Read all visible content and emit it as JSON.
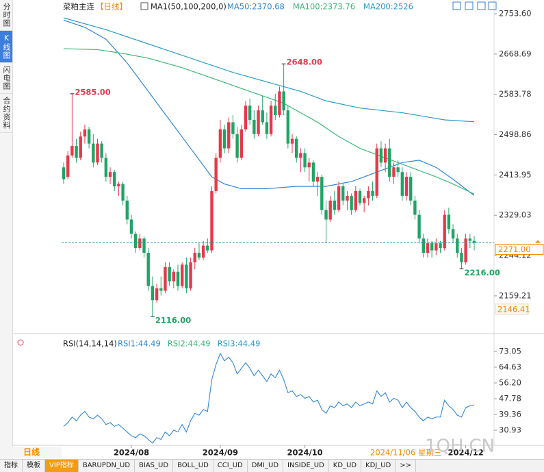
{
  "sidebar": [
    "分时图",
    "K线图",
    "闪电图",
    "合约资料"
  ],
  "chart_data": {
    "type": "candlestick",
    "title": "菜粕主连",
    "period": "【日线】",
    "indicator": "MA1(50,100,200,0)",
    "up_color": "#e5394b",
    "down_color": "#21a366",
    "candles": [
      [
        2430,
        2440,
        2395,
        2405
      ],
      [
        2410,
        2465,
        2405,
        2455
      ],
      [
        2455,
        2585,
        2450,
        2475
      ],
      [
        2475,
        2490,
        2440,
        2450
      ],
      [
        2450,
        2505,
        2445,
        2495
      ],
      [
        2495,
        2520,
        2480,
        2510
      ],
      [
        2510,
        2515,
        2470,
        2480
      ],
      [
        2480,
        2500,
        2430,
        2440
      ],
      [
        2440,
        2490,
        2435,
        2480
      ],
      [
        2480,
        2485,
        2440,
        2450
      ],
      [
        2450,
        2460,
        2400,
        2410
      ],
      [
        2410,
        2430,
        2395,
        2420
      ],
      [
        2420,
        2425,
        2380,
        2390
      ],
      [
        2390,
        2400,
        2370,
        2395
      ],
      [
        2395,
        2400,
        2350,
        2360
      ],
      [
        2360,
        2370,
        2310,
        2320
      ],
      [
        2320,
        2330,
        2280,
        2290
      ],
      [
        2290,
        2295,
        2250,
        2260
      ],
      [
        2260,
        2290,
        2255,
        2280
      ],
      [
        2280,
        2285,
        2240,
        2250
      ],
      [
        2250,
        2260,
        2170,
        2180
      ],
      [
        2180,
        2200,
        2116,
        2150
      ],
      [
        2150,
        2185,
        2145,
        2175
      ],
      [
        2175,
        2200,
        2160,
        2170
      ],
      [
        2170,
        2230,
        2165,
        2220
      ],
      [
        2220,
        2230,
        2180,
        2190
      ],
      [
        2190,
        2215,
        2175,
        2210
      ],
      [
        2210,
        2225,
        2170,
        2180
      ],
      [
        2180,
        2230,
        2175,
        2225
      ],
      [
        2225,
        2240,
        2165,
        2175
      ],
      [
        2175,
        2240,
        2170,
        2230
      ],
      [
        2230,
        2260,
        2215,
        2250
      ],
      [
        2250,
        2270,
        2235,
        2240
      ],
      [
        2240,
        2275,
        2235,
        2265
      ],
      [
        2265,
        2280,
        2250,
        2255
      ],
      [
        2255,
        2390,
        2250,
        2380
      ],
      [
        2380,
        2460,
        2375,
        2450
      ],
      [
        2450,
        2530,
        2440,
        2510
      ],
      [
        2510,
        2520,
        2460,
        2470
      ],
      [
        2470,
        2535,
        2460,
        2525
      ],
      [
        2525,
        2540,
        2490,
        2500
      ],
      [
        2500,
        2515,
        2440,
        2450
      ],
      [
        2450,
        2520,
        2445,
        2510
      ],
      [
        2510,
        2570,
        2505,
        2560
      ],
      [
        2560,
        2575,
        2520,
        2530
      ],
      [
        2530,
        2550,
        2490,
        2500
      ],
      [
        2500,
        2560,
        2495,
        2550
      ],
      [
        2550,
        2580,
        2520,
        2525
      ],
      [
        2525,
        2545,
        2490,
        2500
      ],
      [
        2500,
        2570,
        2495,
        2560
      ],
      [
        2560,
        2585,
        2530,
        2540
      ],
      [
        2540,
        2600,
        2535,
        2590
      ],
      [
        2590,
        2648,
        2540,
        2550
      ],
      [
        2550,
        2560,
        2470,
        2480
      ],
      [
        2480,
        2500,
        2460,
        2490
      ],
      [
        2490,
        2495,
        2440,
        2450
      ],
      [
        2450,
        2470,
        2420,
        2460
      ],
      [
        2460,
        2470,
        2420,
        2430
      ],
      [
        2430,
        2450,
        2400,
        2440
      ],
      [
        2440,
        2445,
        2390,
        2400
      ],
      [
        2400,
        2420,
        2370,
        2410
      ],
      [
        2410,
        2415,
        2330,
        2340
      ],
      [
        2340,
        2360,
        2270,
        2320
      ],
      [
        2320,
        2370,
        2315,
        2360
      ],
      [
        2360,
        2380,
        2330,
        2340
      ],
      [
        2340,
        2400,
        2335,
        2390
      ],
      [
        2390,
        2395,
        2350,
        2360
      ],
      [
        2360,
        2380,
        2340,
        2370
      ],
      [
        2370,
        2375,
        2330,
        2340
      ],
      [
        2340,
        2390,
        2335,
        2380
      ],
      [
        2380,
        2385,
        2350,
        2355
      ],
      [
        2355,
        2370,
        2335,
        2365
      ],
      [
        2365,
        2390,
        2350,
        2380
      ],
      [
        2380,
        2400,
        2360,
        2370
      ],
      [
        2370,
        2480,
        2365,
        2470
      ],
      [
        2470,
        2485,
        2430,
        2440
      ],
      [
        2440,
        2480,
        2420,
        2470
      ],
      [
        2470,
        2490,
        2400,
        2410
      ],
      [
        2410,
        2440,
        2395,
        2430
      ],
      [
        2430,
        2445,
        2410,
        2420
      ],
      [
        2420,
        2430,
        2360,
        2370
      ],
      [
        2370,
        2420,
        2360,
        2410
      ],
      [
        2410,
        2420,
        2350,
        2360
      ],
      [
        2360,
        2370,
        2320,
        2330
      ],
      [
        2330,
        2340,
        2270,
        2280
      ],
      [
        2280,
        2290,
        2240,
        2250
      ],
      [
        2250,
        2280,
        2240,
        2270
      ],
      [
        2270,
        2275,
        2240,
        2255
      ],
      [
        2255,
        2280,
        2245,
        2270
      ],
      [
        2270,
        2275,
        2250,
        2260
      ],
      [
        2260,
        2340,
        2255,
        2330
      ],
      [
        2330,
        2345,
        2290,
        2300
      ],
      [
        2300,
        2310,
        2270,
        2280
      ],
      [
        2280,
        2290,
        2240,
        2250
      ],
      [
        2250,
        2260,
        2216,
        2230
      ],
      [
        2230,
        2290,
        2225,
        2280
      ],
      [
        2280,
        2290,
        2260,
        2275
      ],
      [
        2275,
        2285,
        2255,
        2271
      ]
    ],
    "xticks": [
      {
        "value": 16,
        "label": "2024/08"
      },
      {
        "value": 37,
        "label": "2024/09"
      },
      {
        "value": 57,
        "label": "2024/10"
      },
      {
        "value": 95,
        "label": "2024/12"
      }
    ],
    "ylim": [
      2097,
      2771
    ],
    "yticks": [
      {
        "value": 2753.6,
        "label": "2753.60"
      },
      2668.69,
      2583.78,
      2498.86,
      2413.95,
      2329.03,
      2244.12,
      2159.21
    ],
    "ma": [
      {
        "name": "MA50:2370.68",
        "color": "#2f86d8",
        "x": [
          0,
          5,
          10,
          15,
          20,
          25,
          30,
          35,
          38,
          42,
          48,
          55,
          62,
          68,
          74,
          80,
          84,
          88,
          92,
          97
        ],
        "values": [
          2740,
          2725,
          2700,
          2650,
          2590,
          2530,
          2470,
          2410,
          2395,
          2385,
          2385,
          2390,
          2390,
          2400,
          2420,
          2440,
          2445,
          2430,
          2405,
          2370.68
        ]
      },
      {
        "name": "MA100:2373.76",
        "color": "#3cb878",
        "x": [
          0,
          8,
          14,
          20,
          28,
          36,
          44,
          52,
          56,
          60,
          65,
          70,
          76,
          82,
          88,
          92,
          97
        ],
        "values": [
          2680,
          2678,
          2670,
          2660,
          2640,
          2615,
          2590,
          2565,
          2545,
          2525,
          2495,
          2470,
          2450,
          2430,
          2410,
          2395,
          2373.76
        ]
      },
      {
        "name": "MA200:2526",
        "color": "#2a9bc9",
        "x": [
          0,
          10,
          20,
          30,
          40,
          50,
          56,
          62,
          70,
          80,
          90,
          97
        ],
        "values": [
          2745,
          2720,
          2690,
          2660,
          2630,
          2605,
          2590,
          2570,
          2555,
          2545,
          2530,
          2526
        ]
      }
    ],
    "annotations": [
      {
        "value": 2585,
        "label": "2585.00",
        "color": "#e5394b"
      },
      {
        "value": 2648,
        "label": "2648.00",
        "color": "#e5394b"
      },
      {
        "value": 2116,
        "label": "2116.00",
        "color": "#21a366"
      },
      {
        "value": 2216,
        "label": "2216.00",
        "color": "#21a366"
      }
    ],
    "last_price": {
      "value": 2271,
      "label": "2271.00"
    },
    "level": 2146.41,
    "cursor_date": "2024/11/06 星期三",
    "rsi": {
      "title": "RSI(14,14,14)",
      "legend": [
        "RSI1:44.49",
        "RSI2:44.49",
        "RSI3:44.49"
      ],
      "color": "#2f86d8",
      "ylim": [
        22.9,
        78.9
      ],
      "yticks": [
        73.05,
        64.63,
        {
          "value": 56.2,
          "label": "56.20"
        },
        47.78,
        39.36,
        30.93
      ],
      "values": [
        33,
        35,
        38,
        36,
        39,
        41,
        38,
        37,
        39,
        37,
        34,
        35,
        33,
        34,
        32,
        30,
        28,
        27,
        29,
        28,
        26,
        24,
        27,
        26,
        30,
        28,
        31,
        30,
        34,
        30,
        36,
        40,
        39,
        42,
        41,
        58,
        66,
        72,
        68,
        70,
        67,
        61,
        64,
        67,
        64,
        60,
        63,
        60,
        57,
        61,
        59,
        63,
        58,
        51,
        52,
        49,
        50,
        48,
        49,
        46,
        47,
        42,
        40,
        44,
        43,
        46,
        44,
        45,
        43,
        46,
        44,
        45,
        46,
        45,
        52,
        49,
        51,
        46,
        48,
        47,
        43,
        46,
        43,
        41,
        38,
        36,
        38,
        37,
        38,
        38,
        47,
        44,
        42,
        39,
        38,
        43,
        44,
        44.49
      ]
    }
  },
  "toolbar": {
    "period": "日线",
    "tabs": [
      "指标",
      "模板",
      "VIP指标",
      "BARUPDN_UD",
      "BIAS_UD",
      "BOLL_UD",
      "CCI_UD",
      "DMI_UD",
      "INSIDE_UD",
      "KD_UD",
      "KDJ_UD",
      ">>"
    ]
  },
  "watermark": "1QH.CN"
}
